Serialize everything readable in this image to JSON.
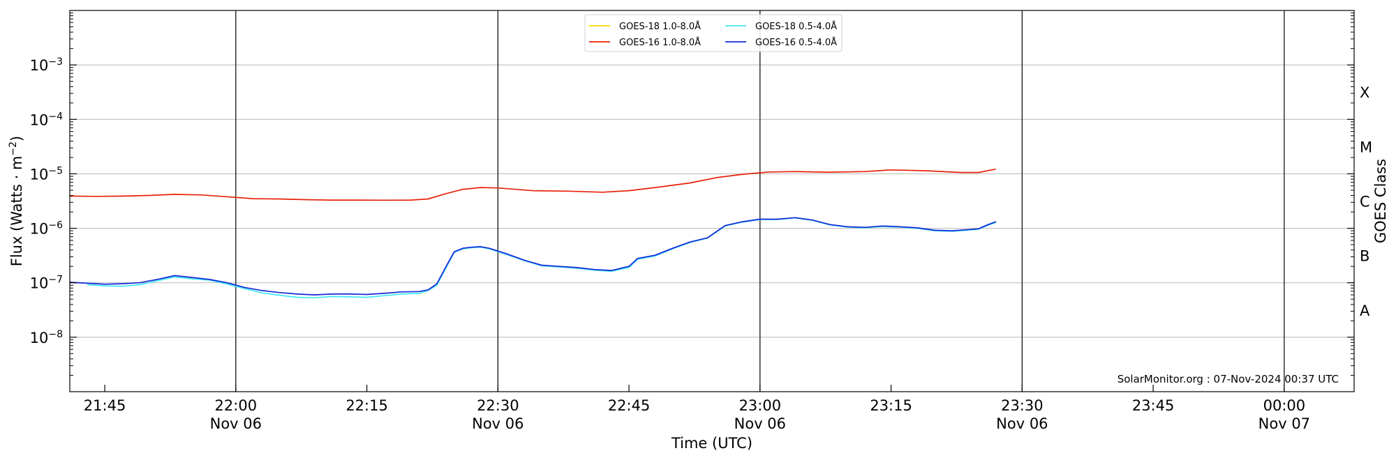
{
  "chart_data": {
    "type": "line",
    "xlabel": "Time (UTC)",
    "ylabel_main": "Flux (Watts · m",
    "ylabel_sup": "−2",
    "ylabel_close": ")",
    "y2label": "GOES Class",
    "yscale": "log",
    "xlim": [
      "2024-11-06 21:41",
      "2024-11-07 00:08"
    ],
    "ylim": [
      1e-09,
      0.01
    ],
    "grid": "horizontal",
    "legend_position": "top-center",
    "credit": "SolarMonitor.org : 07-Nov-2024 00:37 UTC",
    "x_ticks": [
      {
        "t": "2024-11-06 21:45",
        "label": "21:45",
        "sub": ""
      },
      {
        "t": "2024-11-06 22:00",
        "label": "22:00",
        "sub": "Nov 06"
      },
      {
        "t": "2024-11-06 22:15",
        "label": "22:15",
        "sub": ""
      },
      {
        "t": "2024-11-06 22:30",
        "label": "22:30",
        "sub": "Nov 06"
      },
      {
        "t": "2024-11-06 22:45",
        "label": "22:45",
        "sub": ""
      },
      {
        "t": "2024-11-06 23:00",
        "label": "23:00",
        "sub": "Nov 06"
      },
      {
        "t": "2024-11-06 23:15",
        "label": "23:15",
        "sub": ""
      },
      {
        "t": "2024-11-06 23:30",
        "label": "23:30",
        "sub": "Nov 06"
      },
      {
        "t": "2024-11-06 23:45",
        "label": "23:45",
        "sub": ""
      },
      {
        "t": "2024-11-07 00:00",
        "label": "00:00",
        "sub": "Nov 07"
      }
    ],
    "vertical_lines": [
      "2024-11-06 22:00",
      "2024-11-06 22:30",
      "2024-11-06 23:00",
      "2024-11-06 23:30",
      "2024-11-07 00:00"
    ],
    "y_ticks": [
      {
        "value": 1e-08,
        "base": "10",
        "exp": "−8"
      },
      {
        "value": 1e-07,
        "base": "10",
        "exp": "−7"
      },
      {
        "value": 1e-06,
        "base": "10",
        "exp": "−6"
      },
      {
        "value": 1e-05,
        "base": "10",
        "exp": "−5"
      },
      {
        "value": 0.0001,
        "base": "10",
        "exp": "−4"
      },
      {
        "value": 0.001,
        "base": "10",
        "exp": "−3"
      }
    ],
    "class_labels": [
      {
        "label": "A",
        "value": 3.16e-08
      },
      {
        "label": "B",
        "value": 3.16e-07
      },
      {
        "label": "C",
        "value": 3.16e-06
      },
      {
        "label": "M",
        "value": 3.16e-05
      },
      {
        "label": "X",
        "value": 0.000316
      }
    ],
    "series": [
      {
        "name": "GOES-18 1.0-8.0Å",
        "color": "#ffd700",
        "x": [],
        "y": []
      },
      {
        "name": "GOES-18 0.5-4.0Å",
        "color": "#40e8f0",
        "x": [
          "2024-11-06 21:43",
          "2024-11-06 21:45",
          "2024-11-06 21:47",
          "2024-11-06 21:49",
          "2024-11-06 21:51",
          "2024-11-06 21:53",
          "2024-11-06 21:55",
          "2024-11-06 21:57",
          "2024-11-06 21:59",
          "2024-11-06 22:01",
          "2024-11-06 22:03",
          "2024-11-06 22:05",
          "2024-11-06 22:07",
          "2024-11-06 22:09",
          "2024-11-06 22:11",
          "2024-11-06 22:13",
          "2024-11-06 22:15",
          "2024-11-06 22:17",
          "2024-11-06 22:19",
          "2024-11-06 22:21",
          "2024-11-06 22:22",
          "2024-11-06 22:23",
          "2024-11-06 22:24",
          "2024-11-06 22:25",
          "2024-11-06 22:26",
          "2024-11-06 22:27",
          "2024-11-06 22:28",
          "2024-11-06 22:29",
          "2024-11-06 22:31",
          "2024-11-06 22:33",
          "2024-11-06 22:35",
          "2024-11-06 22:37",
          "2024-11-06 22:39",
          "2024-11-06 22:41",
          "2024-11-06 22:43",
          "2024-11-06 22:45",
          "2024-11-06 22:46",
          "2024-11-06 22:48",
          "2024-11-06 22:50",
          "2024-11-06 22:52",
          "2024-11-06 22:54",
          "2024-11-06 22:56",
          "2024-11-06 22:58",
          "2024-11-06 23:00",
          "2024-11-06 23:02",
          "2024-11-06 23:04",
          "2024-11-06 23:06",
          "2024-11-06 23:08",
          "2024-11-06 23:10",
          "2024-11-06 23:12",
          "2024-11-06 23:14",
          "2024-11-06 23:16",
          "2024-11-06 23:18",
          "2024-11-06 23:20",
          "2024-11-06 23:22",
          "2024-11-06 23:24",
          "2024-11-06 23:25",
          "2024-11-06 23:26",
          "2024-11-06 23:27"
        ],
        "y": [
          9.2e-08,
          8.8e-08,
          8.6e-08,
          9.2e-08,
          1.08e-07,
          1.28e-07,
          1.18e-07,
          1.12e-07,
          9.5e-08,
          7.8e-08,
          6.5e-08,
          5.9e-08,
          5.4e-08,
          5.3e-08,
          5.6e-08,
          5.5e-08,
          5.4e-08,
          5.8e-08,
          6.2e-08,
          6.4e-08,
          7.2e-08,
          9e-08,
          1.8e-07,
          3.6e-07,
          4.2e-07,
          4.4e-07,
          4.5e-07,
          4.2e-07,
          3.3e-07,
          2.55e-07,
          2.05e-07,
          1.95e-07,
          1.85e-07,
          1.7e-07,
          1.62e-07,
          1.9e-07,
          2.7e-07,
          3.1e-07,
          4.2e-07,
          5.5e-07,
          6.6e-07,
          1.1e-06,
          1.3e-06,
          1.45e-06,
          1.45e-06,
          1.55e-06,
          1.4e-06,
          1.15e-06,
          1.05e-06,
          1.02e-06,
          1.08e-06,
          1.05e-06,
          1e-06,
          9e-07,
          8.8e-07,
          9.3e-07,
          9.6e-07,
          1.12e-06,
          1.28e-06
        ]
      },
      {
        "name": "GOES-16 1.0-8.0Å",
        "color": "#e8200a",
        "x": [
          "2024-11-06 21:41",
          "2024-11-06 21:44",
          "2024-11-06 21:47",
          "2024-11-06 21:50",
          "2024-11-06 21:53",
          "2024-11-06 21:56",
          "2024-11-06 21:59",
          "2024-11-06 22:02",
          "2024-11-06 22:05",
          "2024-11-06 22:08",
          "2024-11-06 22:11",
          "2024-11-06 22:14",
          "2024-11-06 22:17",
          "2024-11-06 22:20",
          "2024-11-06 22:22",
          "2024-11-06 22:24",
          "2024-11-06 22:26",
          "2024-11-06 22:28",
          "2024-11-06 22:30",
          "2024-11-06 22:34",
          "2024-11-06 22:38",
          "2024-11-06 22:42",
          "2024-11-06 22:45",
          "2024-11-06 22:48",
          "2024-11-06 22:52",
          "2024-11-06 22:55",
          "2024-11-06 22:58",
          "2024-11-06 23:01",
          "2024-11-06 23:04",
          "2024-11-06 23:08",
          "2024-11-06 23:12",
          "2024-11-06 23:15",
          "2024-11-06 23:19",
          "2024-11-06 23:23",
          "2024-11-06 23:25",
          "2024-11-06 23:27"
        ],
        "y": [
          3.9e-06,
          3.85e-06,
          3.9e-06,
          4e-06,
          4.2e-06,
          4.1e-06,
          3.8e-06,
          3.5e-06,
          3.45e-06,
          3.35e-06,
          3.3e-06,
          3.3e-06,
          3.28e-06,
          3.3e-06,
          3.45e-06,
          4.3e-06,
          5.2e-06,
          5.6e-06,
          5.5e-06,
          4.9e-06,
          4.8e-06,
          4.6e-06,
          4.9e-06,
          5.6e-06,
          6.8e-06,
          8.5e-06,
          9.8e-06,
          1.08e-05,
          1.1e-05,
          1.07e-05,
          1.1e-05,
          1.18e-05,
          1.14e-05,
          1.06e-05,
          1.06e-05,
          1.22e-05
        ]
      },
      {
        "name": "GOES-16 0.5-4.0Å",
        "color": "#1428d8",
        "x": [
          "2024-11-06 21:41",
          "2024-11-06 21:43",
          "2024-11-06 21:45",
          "2024-11-06 21:47",
          "2024-11-06 21:49",
          "2024-11-06 21:51",
          "2024-11-06 21:53",
          "2024-11-06 21:55",
          "2024-11-06 21:57",
          "2024-11-06 21:59",
          "2024-11-06 22:01",
          "2024-11-06 22:03",
          "2024-11-06 22:05",
          "2024-11-06 22:07",
          "2024-11-06 22:09",
          "2024-11-06 22:11",
          "2024-11-06 22:13",
          "2024-11-06 22:15",
          "2024-11-06 22:17",
          "2024-11-06 22:19",
          "2024-11-06 22:21",
          "2024-11-06 22:22",
          "2024-11-06 22:23",
          "2024-11-06 22:24",
          "2024-11-06 22:25",
          "2024-11-06 22:26",
          "2024-11-06 22:27",
          "2024-11-06 22:28",
          "2024-11-06 22:29",
          "2024-11-06 22:31",
          "2024-11-06 22:33",
          "2024-11-06 22:35",
          "2024-11-06 22:37",
          "2024-11-06 22:39",
          "2024-11-06 22:41",
          "2024-11-06 22:43",
          "2024-11-06 22:45",
          "2024-11-06 22:46",
          "2024-11-06 22:48",
          "2024-11-06 22:50",
          "2024-11-06 22:52",
          "2024-11-06 22:54",
          "2024-11-06 22:56",
          "2024-11-06 22:58",
          "2024-11-06 23:00",
          "2024-11-06 23:02",
          "2024-11-06 23:04",
          "2024-11-06 23:06",
          "2024-11-06 23:08",
          "2024-11-06 23:10",
          "2024-11-06 23:12",
          "2024-11-06 23:14",
          "2024-11-06 23:16",
          "2024-11-06 23:18",
          "2024-11-06 23:20",
          "2024-11-06 23:22",
          "2024-11-06 23:24",
          "2024-11-06 23:25",
          "2024-11-06 23:26",
          "2024-11-06 23:27"
        ],
        "y": [
          1.02e-07,
          9.8e-08,
          9.4e-08,
          9.6e-08,
          1e-07,
          1.15e-07,
          1.35e-07,
          1.25e-07,
          1.15e-07,
          1e-07,
          8.2e-08,
          7.2e-08,
          6.6e-08,
          6.2e-08,
          6e-08,
          6.2e-08,
          6.2e-08,
          6.1e-08,
          6.4e-08,
          6.8e-08,
          6.9e-08,
          7.4e-08,
          9.5e-08,
          1.9e-07,
          3.7e-07,
          4.3e-07,
          4.5e-07,
          4.6e-07,
          4.3e-07,
          3.4e-07,
          2.6e-07,
          2.1e-07,
          2e-07,
          1.9e-07,
          1.75e-07,
          1.68e-07,
          2e-07,
          2.8e-07,
          3.2e-07,
          4.3e-07,
          5.6e-07,
          6.7e-07,
          1.12e-06,
          1.32e-06,
          1.47e-06,
          1.47e-06,
          1.57e-06,
          1.42e-06,
          1.17e-06,
          1.07e-06,
          1.04e-06,
          1.1e-06,
          1.07e-06,
          1.02e-06,
          9.2e-07,
          9e-07,
          9.5e-07,
          9.8e-07,
          1.15e-06,
          1.32e-06
        ]
      }
    ]
  }
}
